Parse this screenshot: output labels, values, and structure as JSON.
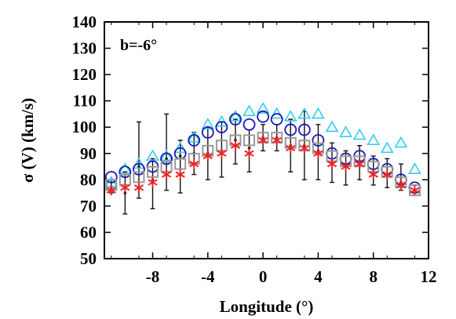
{
  "chart_data": {
    "type": "scatter",
    "annotation": "b=-6°",
    "xlabel": "Longitude (°)",
    "ylabel": "σ (V)  (km/s)",
    "xlim": [
      -11.5,
      12
    ],
    "ylim": [
      50,
      140
    ],
    "x_ticks": [
      -8,
      -4,
      0,
      4,
      8,
      12
    ],
    "y_ticks": [
      50,
      60,
      70,
      80,
      90,
      100,
      110,
      120,
      130,
      140
    ],
    "grid": false,
    "legend": "none",
    "series": [
      {
        "marker": "triangle",
        "color": "#33ccee",
        "x": [
          -11,
          -10,
          -9,
          -8,
          -7,
          -6,
          -5,
          -4,
          -3,
          -2,
          -1,
          0,
          1,
          2,
          3,
          4,
          5,
          6,
          7,
          8,
          9,
          10,
          11
        ],
        "values": [
          79,
          84,
          86,
          89,
          89,
          92,
          96,
          101,
          102,
          104,
          106,
          107,
          105,
          104,
          105,
          105,
          100,
          98,
          97,
          95,
          92,
          94,
          84
        ]
      },
      {
        "marker": "circle",
        "color": "#1818bb",
        "x": [
          -11,
          -10,
          -9,
          -8,
          -7,
          -6,
          -5,
          -4,
          -3,
          -2,
          -1,
          0,
          1,
          2,
          3,
          4,
          5,
          6,
          7,
          8,
          9,
          10,
          11
        ],
        "values": [
          81,
          83,
          84,
          85,
          88,
          90,
          95,
          98,
          100,
          103,
          101,
          104,
          103,
          99,
          99,
          95,
          90,
          88,
          89,
          86,
          84,
          80,
          77
        ]
      },
      {
        "marker": "square",
        "color": "#999999",
        "x": [
          -11,
          -10,
          -9,
          -8,
          -7,
          -6,
          -5,
          -4,
          -3,
          -2,
          -1,
          0,
          1,
          2,
          3,
          4,
          5,
          6,
          7,
          8,
          9,
          10,
          11
        ],
        "values": [
          78,
          80,
          81,
          83,
          85,
          86,
          88,
          91,
          93,
          95,
          95,
          96,
          96,
          94,
          93,
          92,
          89,
          87,
          87,
          85,
          83,
          79,
          76
        ]
      },
      {
        "marker": "star",
        "color": "#ee2222",
        "x": [
          -11,
          -10,
          -9,
          -8,
          -7,
          -6,
          -5,
          -4,
          -3,
          -2,
          -1,
          0,
          1,
          2,
          3,
          4,
          5,
          6,
          7,
          8,
          9,
          10,
          11
        ],
        "values": [
          76,
          77,
          77,
          79,
          82,
          82,
          86,
          89,
          90,
          93,
          90,
          95,
          95,
          92,
          92,
          90,
          86,
          85,
          86,
          82,
          82,
          78,
          76
        ]
      }
    ],
    "error_bars": {
      "color": "#111111",
      "x": [
        -11,
        -10,
        -9,
        -8,
        -7,
        -6,
        -5,
        -4,
        -3,
        -2,
        -1,
        0,
        1,
        2,
        3,
        4,
        5,
        6,
        7,
        8,
        9,
        10,
        11
      ],
      "center": [
        77,
        75,
        85,
        80,
        88,
        89,
        90,
        90,
        91,
        95,
        92,
        96,
        96,
        93,
        93,
        91,
        87,
        86,
        87,
        83,
        82,
        79,
        76
      ],
      "low": [
        75,
        67,
        73,
        69,
        76,
        75,
        82,
        80,
        81,
        86,
        83,
        91,
        91,
        83,
        80,
        80,
        79,
        78,
        80,
        78,
        77,
        76,
        75
      ],
      "high": [
        80,
        83,
        102,
        88,
        105,
        95,
        98,
        100,
        102,
        103,
        99,
        101,
        101,
        103,
        106,
        101,
        94,
        91,
        93,
        89,
        88,
        86,
        78
      ]
    }
  }
}
